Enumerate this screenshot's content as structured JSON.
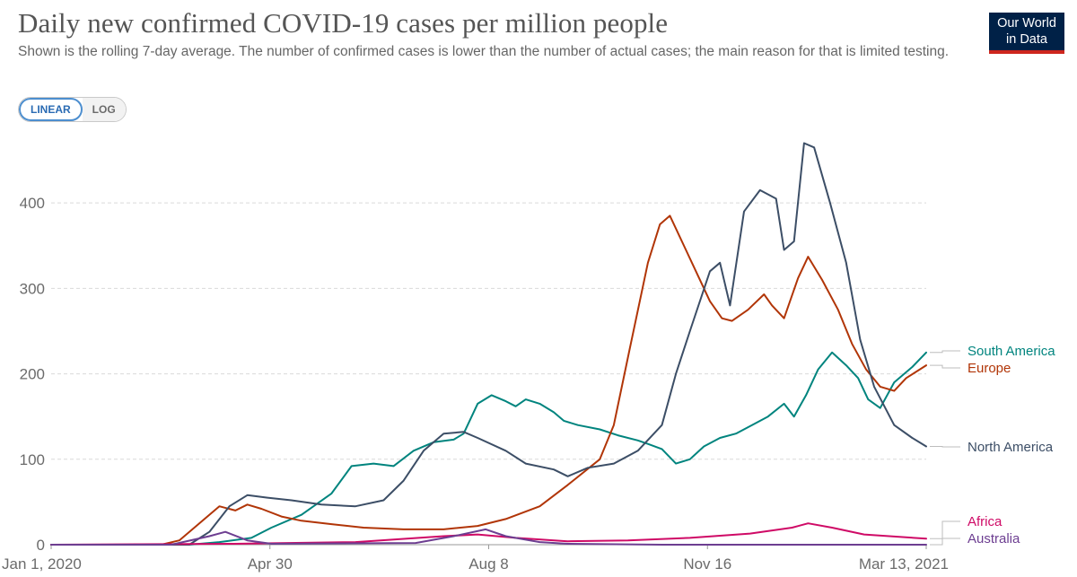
{
  "header": {
    "title": "Daily new confirmed COVID-19 cases per million people",
    "subtitle": "Shown is the rolling 7-day average. The number of confirmed cases is lower than the number of actual cases; the main reason for that is limited testing.",
    "logo_line1": "Our World",
    "logo_line2": "in Data"
  },
  "scale_toggle": {
    "linear_label": "LINEAR",
    "log_label": "LOG",
    "selected": "LINEAR"
  },
  "chart_data": {
    "type": "line",
    "xlim": [
      "2020-01-01",
      "2021-03-13"
    ],
    "ylim": [
      0,
      480
    ],
    "x_ticks": [
      "Jan 1, 2020",
      "Apr 30",
      "Aug 8",
      "Nov 16",
      "Mar 13, 2021"
    ],
    "y_ticks": [
      "0",
      "100",
      "200",
      "300",
      "400"
    ],
    "grid": "horizontal dashed",
    "legend_placement": "right, labels at line ends",
    "series": [
      {
        "name": "South America",
        "color": "#00847e",
        "points": [
          [
            "2020-01-01",
            0
          ],
          [
            "2020-03-10",
            0
          ],
          [
            "2020-03-25",
            3
          ],
          [
            "2020-04-10",
            8
          ],
          [
            "2020-04-20",
            20
          ],
          [
            "2020-05-05",
            35
          ],
          [
            "2020-05-20",
            60
          ],
          [
            "2020-05-30",
            92
          ],
          [
            "2020-06-10",
            95
          ],
          [
            "2020-06-20",
            92
          ],
          [
            "2020-06-30",
            110
          ],
          [
            "2020-07-10",
            120
          ],
          [
            "2020-07-20",
            123
          ],
          [
            "2020-07-25",
            130
          ],
          [
            "2020-08-01",
            165
          ],
          [
            "2020-08-08",
            175
          ],
          [
            "2020-08-15",
            168
          ],
          [
            "2020-08-20",
            162
          ],
          [
            "2020-08-25",
            170
          ],
          [
            "2020-09-01",
            165
          ],
          [
            "2020-09-08",
            155
          ],
          [
            "2020-09-13",
            145
          ],
          [
            "2020-09-20",
            140
          ],
          [
            "2020-10-01",
            135
          ],
          [
            "2020-10-10",
            128
          ],
          [
            "2020-10-20",
            122
          ],
          [
            "2020-10-25",
            118
          ],
          [
            "2020-11-01",
            112
          ],
          [
            "2020-11-08",
            95
          ],
          [
            "2020-11-15",
            100
          ],
          [
            "2020-11-22",
            115
          ],
          [
            "2020-11-30",
            125
          ],
          [
            "2020-12-08",
            130
          ],
          [
            "2020-12-16",
            140
          ],
          [
            "2020-12-24",
            150
          ],
          [
            "2021-01-01",
            165
          ],
          [
            "2021-01-06",
            150
          ],
          [
            "2021-01-12",
            175
          ],
          [
            "2021-01-18",
            205
          ],
          [
            "2021-01-25",
            225
          ],
          [
            "2021-02-01",
            210
          ],
          [
            "2021-02-07",
            195
          ],
          [
            "2021-02-12",
            170
          ],
          [
            "2021-02-18",
            160
          ],
          [
            "2021-02-25",
            190
          ],
          [
            "2021-03-06",
            208
          ],
          [
            "2021-03-13",
            225
          ]
        ]
      },
      {
        "name": "Europe",
        "color": "#b13507",
        "points": [
          [
            "2020-01-01",
            0
          ],
          [
            "2020-02-25",
            0
          ],
          [
            "2020-03-05",
            5
          ],
          [
            "2020-03-15",
            25
          ],
          [
            "2020-03-25",
            45
          ],
          [
            "2020-04-02",
            40
          ],
          [
            "2020-04-08",
            47
          ],
          [
            "2020-04-15",
            42
          ],
          [
            "2020-04-25",
            33
          ],
          [
            "2020-05-05",
            28
          ],
          [
            "2020-05-20",
            24
          ],
          [
            "2020-06-05",
            20
          ],
          [
            "2020-06-25",
            18
          ],
          [
            "2020-07-15",
            18
          ],
          [
            "2020-08-01",
            22
          ],
          [
            "2020-08-15",
            30
          ],
          [
            "2020-09-01",
            45
          ],
          [
            "2020-09-15",
            70
          ],
          [
            "2020-10-01",
            100
          ],
          [
            "2020-10-08",
            140
          ],
          [
            "2020-10-16",
            230
          ],
          [
            "2020-10-25",
            330
          ],
          [
            "2020-10-31",
            375
          ],
          [
            "2020-11-05",
            385
          ],
          [
            "2020-11-10",
            360
          ],
          [
            "2020-11-18",
            320
          ],
          [
            "2020-11-25",
            285
          ],
          [
            "2020-12-01",
            265
          ],
          [
            "2020-12-06",
            262
          ],
          [
            "2020-12-14",
            275
          ],
          [
            "2020-12-22",
            293
          ],
          [
            "2020-12-26",
            280
          ],
          [
            "2021-01-01",
            265
          ],
          [
            "2021-01-08",
            312
          ],
          [
            "2021-01-13",
            337
          ],
          [
            "2021-01-20",
            310
          ],
          [
            "2021-01-28",
            275
          ],
          [
            "2021-02-04",
            235
          ],
          [
            "2021-02-11",
            205
          ],
          [
            "2021-02-18",
            185
          ],
          [
            "2021-02-25",
            180
          ],
          [
            "2021-03-03",
            195
          ],
          [
            "2021-03-13",
            210
          ]
        ]
      },
      {
        "name": "North America",
        "color": "#3c4e66",
        "points": [
          [
            "2020-01-01",
            0
          ],
          [
            "2020-03-10",
            0
          ],
          [
            "2020-03-20",
            15
          ],
          [
            "2020-03-30",
            45
          ],
          [
            "2020-04-08",
            58
          ],
          [
            "2020-04-18",
            55
          ],
          [
            "2020-04-30",
            52
          ],
          [
            "2020-05-15",
            47
          ],
          [
            "2020-06-01",
            45
          ],
          [
            "2020-06-15",
            52
          ],
          [
            "2020-06-25",
            75
          ],
          [
            "2020-07-05",
            110
          ],
          [
            "2020-07-15",
            130
          ],
          [
            "2020-07-25",
            132
          ],
          [
            "2020-08-01",
            125
          ],
          [
            "2020-08-15",
            110
          ],
          [
            "2020-08-25",
            95
          ],
          [
            "2020-09-08",
            88
          ],
          [
            "2020-09-15",
            80
          ],
          [
            "2020-09-25",
            90
          ],
          [
            "2020-10-08",
            95
          ],
          [
            "2020-10-20",
            110
          ],
          [
            "2020-11-01",
            140
          ],
          [
            "2020-11-08",
            200
          ],
          [
            "2020-11-15",
            250
          ],
          [
            "2020-11-25",
            320
          ],
          [
            "2020-11-30",
            330
          ],
          [
            "2020-12-05",
            280
          ],
          [
            "2020-12-12",
            390
          ],
          [
            "2020-12-20",
            415
          ],
          [
            "2020-12-28",
            405
          ],
          [
            "2021-01-01",
            345
          ],
          [
            "2021-01-06",
            355
          ],
          [
            "2021-01-11",
            470
          ],
          [
            "2021-01-16",
            465
          ],
          [
            "2021-01-24",
            400
          ],
          [
            "2021-02-01",
            330
          ],
          [
            "2021-02-08",
            240
          ],
          [
            "2021-02-15",
            185
          ],
          [
            "2021-02-25",
            140
          ],
          [
            "2021-03-06",
            125
          ],
          [
            "2021-03-13",
            115
          ]
        ]
      },
      {
        "name": "Africa",
        "color": "#cf0a66",
        "points": [
          [
            "2020-01-01",
            0
          ],
          [
            "2020-04-01",
            1
          ],
          [
            "2020-06-01",
            3
          ],
          [
            "2020-07-15",
            10
          ],
          [
            "2020-08-01",
            12
          ],
          [
            "2020-08-20",
            8
          ],
          [
            "2020-09-15",
            4
          ],
          [
            "2020-10-15",
            5
          ],
          [
            "2020-11-15",
            8
          ],
          [
            "2020-12-15",
            13
          ],
          [
            "2021-01-05",
            20
          ],
          [
            "2021-01-13",
            25
          ],
          [
            "2021-01-25",
            20
          ],
          [
            "2021-02-10",
            12
          ],
          [
            "2021-03-13",
            7
          ]
        ]
      },
      {
        "name": "Australia",
        "color": "#6d3e91",
        "points": [
          [
            "2020-01-01",
            0
          ],
          [
            "2020-03-01",
            0
          ],
          [
            "2020-03-20",
            10
          ],
          [
            "2020-03-28",
            15
          ],
          [
            "2020-04-08",
            5
          ],
          [
            "2020-04-20",
            1
          ],
          [
            "2020-07-01",
            2
          ],
          [
            "2020-07-20",
            10
          ],
          [
            "2020-08-05",
            18
          ],
          [
            "2020-08-15",
            10
          ],
          [
            "2020-09-01",
            3
          ],
          [
            "2020-09-15",
            1
          ],
          [
            "2020-11-01",
            0
          ],
          [
            "2021-03-13",
            0
          ]
        ]
      }
    ]
  }
}
